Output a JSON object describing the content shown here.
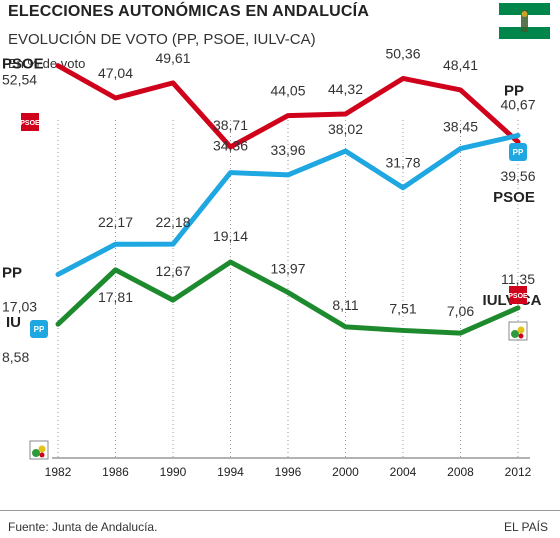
{
  "header": {
    "title": "ELECCIONES AUTONÓMICAS EN ANDALUCÍA",
    "subtitle": "EVOLUCIÓN DE VOTO  (PP, PSOE, IULV-CA)",
    "unit": "En % de voto"
  },
  "footer": {
    "source": "Fuente: Junta de Andalucía.",
    "brand": "EL PAÍS"
  },
  "logos": {
    "psoe": "PSOE",
    "pp": "PP"
  },
  "colors": {
    "psoe": "#d0021b",
    "pp": "#1ea7e1",
    "iu": "#1e8a2e",
    "flag_green": "#00854a"
  },
  "chart_data": {
    "type": "line",
    "title": "ELECCIONES AUTONÓMICAS EN ANDALUCÍA",
    "subtitle": "EVOLUCIÓN DE VOTO  (PP, PSOE, IULV-CA)",
    "ylabel": "En % de voto",
    "x": [
      "1982",
      "1986",
      "1990",
      "1994",
      "1996",
      "2000",
      "2004",
      "2008",
      "2012"
    ],
    "grid": "vertical dotted",
    "series": [
      {
        "name": "PSOE",
        "color": "#d0021b",
        "values": [
          52.54,
          47.04,
          49.61,
          38.71,
          44.05,
          44.32,
          50.36,
          48.41,
          39.56
        ],
        "labels": [
          "52,54",
          "47,04",
          "49,61",
          "38,71",
          "44,05",
          "44,32",
          "50,36",
          "48,41",
          "39,56"
        ]
      },
      {
        "name": "PP",
        "color": "#1ea7e1",
        "values": [
          17.03,
          22.17,
          22.18,
          34.36,
          33.96,
          38.02,
          31.78,
          38.45,
          40.67
        ],
        "labels": [
          "17,03",
          "22,17",
          "22,18",
          "34,36",
          "33,96",
          "38,02",
          "31,78",
          "38,45",
          "40,67"
        ]
      },
      {
        "name": "IU",
        "end_name": "IULV-CA",
        "color": "#1e8a2e",
        "values": [
          8.58,
          17.81,
          12.67,
          19.14,
          13.97,
          8.11,
          7.51,
          7.06,
          11.35
        ],
        "labels": [
          "8,58",
          "17,81",
          "12,67",
          "19,14",
          "13,97",
          "8,11",
          "7,51",
          "7,06",
          "11,35"
        ]
      }
    ]
  }
}
